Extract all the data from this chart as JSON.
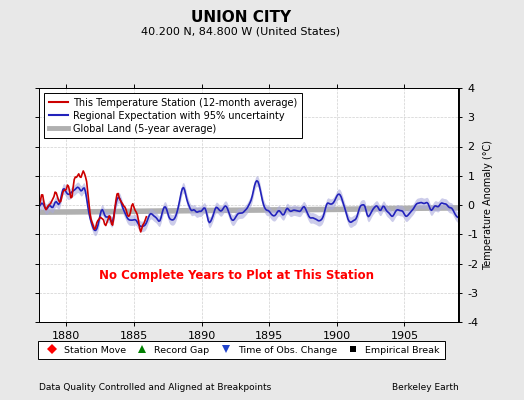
{
  "title": "UNION CITY",
  "subtitle": "40.200 N, 84.800 W (United States)",
  "xlabel_bottom": "Data Quality Controlled and Aligned at Breakpoints",
  "xlabel_right": "Berkeley Earth",
  "ylabel": "Temperature Anomaly (°C)",
  "no_data_text": "No Complete Years to Plot at This Station",
  "xlim": [
    1878.0,
    1909.0
  ],
  "ylim": [
    -4,
    4
  ],
  "yticks": [
    -4,
    -3,
    -2,
    -1,
    0,
    1,
    2,
    3,
    4
  ],
  "xticks": [
    1880,
    1885,
    1890,
    1895,
    1900,
    1905
  ],
  "background_color": "#e8e8e8",
  "plot_bg_color": "#ffffff",
  "regional_color": "#2222bb",
  "regional_fill_color": "#aaaadd",
  "station_color": "#cc0000",
  "global_color": "#b0b0b0",
  "global_lw": 4.0,
  "regional_lw": 1.2,
  "station_lw": 1.2,
  "title_fontsize": 11,
  "subtitle_fontsize": 8,
  "legend_fontsize": 7,
  "tick_fontsize": 8,
  "ylabel_fontsize": 7,
  "seed": 12345
}
